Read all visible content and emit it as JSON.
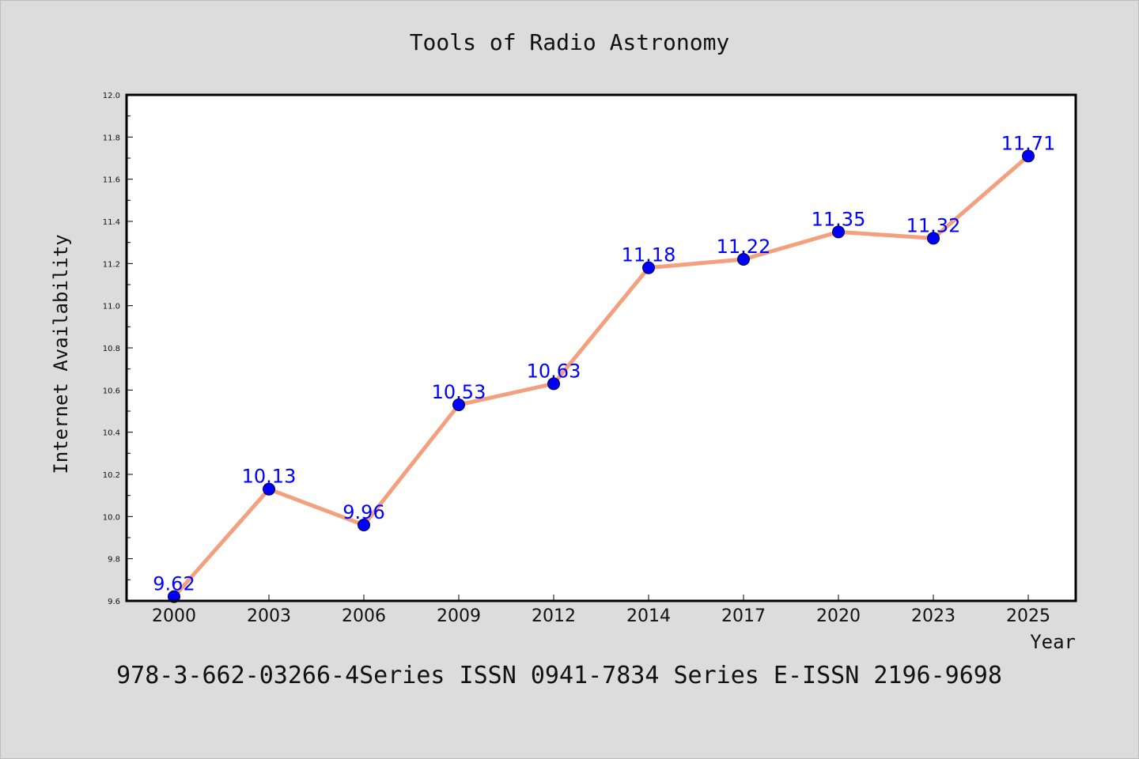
{
  "chart_data": {
    "type": "line",
    "title": "Tools of Radio Astronomy",
    "xlabel": "Year",
    "ylabel": "Internet Availability",
    "categories": [
      "2000",
      "2003",
      "2006",
      "2009",
      "2012",
      "2014",
      "2017",
      "2020",
      "2023",
      "2025"
    ],
    "series": [
      {
        "values": [
          9.62,
          10.13,
          9.96,
          10.53,
          10.63,
          11.18,
          11.22,
          11.35,
          11.32,
          11.71
        ],
        "line_color": "#f4a07e",
        "marker_color": "#0000ff",
        "label_color": "#0000ff"
      }
    ],
    "data_labels": [
      "9.62",
      "10.13",
      "9.96",
      "10.53",
      "10.63",
      "11.18",
      "11.22",
      "11.35",
      "11.32",
      "11.71"
    ],
    "ylim": [
      9.6,
      12.0
    ],
    "yticks": [
      "9.6",
      "9.8",
      "10.0",
      "10.2",
      "10.4",
      "10.6",
      "10.8",
      "11.0",
      "11.2",
      "11.4",
      "11.6",
      "11.8",
      "12.0"
    ],
    "grid": false,
    "legend": "none",
    "background": "#dcdcdc",
    "plot_background": "#ffffff"
  },
  "footer": {
    "text": "978-3-662-03266-4Series ISSN 0941-7834 Series E-ISSN 2196-9698"
  }
}
